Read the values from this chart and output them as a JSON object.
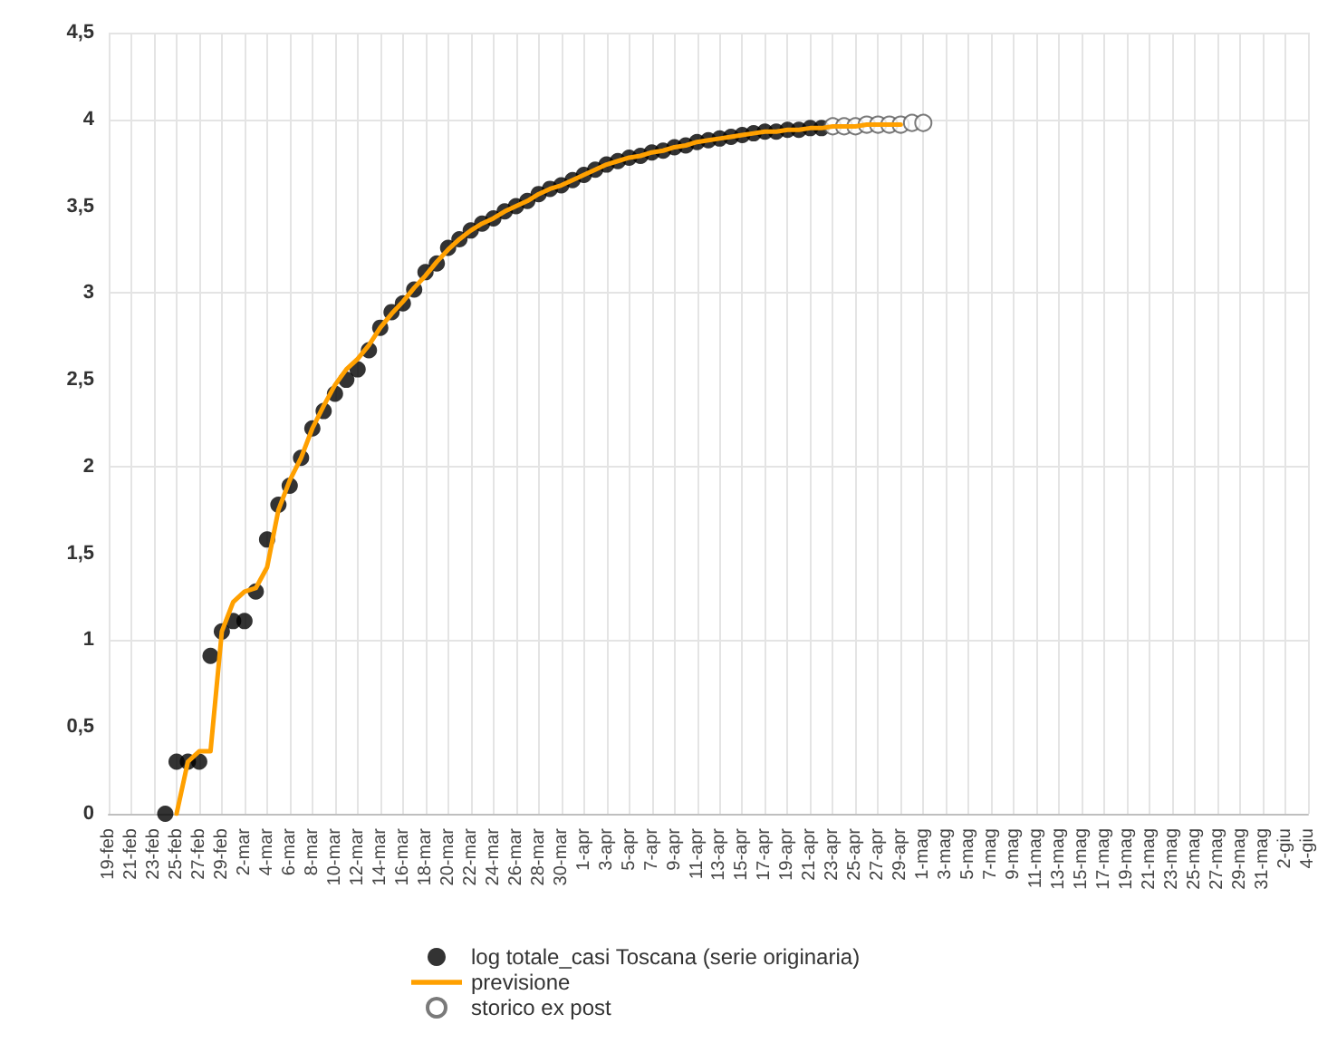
{
  "chart_data": {
    "type": "scatter",
    "categories": [
      "19-feb",
      null,
      "21-feb",
      null,
      "23-feb",
      null,
      "25-feb",
      null,
      "27-feb",
      null,
      "29-feb",
      null,
      "2-mar",
      null,
      "4-mar",
      null,
      "6-mar",
      null,
      "8-mar",
      null,
      "10-mar",
      null,
      "12-mar",
      null,
      "14-mar",
      null,
      "16-mar",
      null,
      "18-mar",
      null,
      "20-mar",
      null,
      "22-mar",
      null,
      "24-mar",
      null,
      "26-mar",
      null,
      "28-mar",
      null,
      "30-mar",
      null,
      "1-apr",
      null,
      "3-apr",
      null,
      "5-apr",
      null,
      "7-apr",
      null,
      "9-apr",
      null,
      "11-apr",
      null,
      "13-apr",
      null,
      "15-apr",
      null,
      "17-apr",
      null,
      "19-apr",
      null,
      "21-apr",
      null,
      "23-apr",
      null,
      "25-apr",
      null,
      "27-apr",
      null,
      "29-apr",
      null,
      "1-mag",
      null,
      "3-mag",
      null,
      "5-mag",
      null,
      "7-mag",
      null,
      "9-mag",
      null,
      "11-mag",
      null,
      "13-mag",
      null,
      "15-mag",
      null,
      "17-mag",
      null,
      "19-mag",
      null,
      "21-mag",
      null,
      "23-mag",
      null,
      "25-mag",
      null,
      "27-mag",
      null,
      "29-mag",
      null,
      "31-mag",
      null,
      "2-giu",
      null,
      "4-giu"
    ],
    "series": [
      {
        "name": "log totale_casi Toscana (serie originaria)",
        "marker": "circle",
        "color": "#000000",
        "values": [
          null,
          null,
          null,
          null,
          null,
          0,
          0.3,
          0.3,
          0.3,
          0.91,
          1.05,
          1.11,
          1.11,
          1.28,
          1.58,
          1.78,
          1.89,
          2.05,
          2.22,
          2.32,
          2.42,
          2.5,
          2.56,
          2.67,
          2.8,
          2.89,
          2.94,
          3.02,
          3.12,
          3.17,
          3.26,
          3.31,
          3.36,
          3.4,
          3.43,
          3.47,
          3.5,
          3.53,
          3.57,
          3.6,
          3.62,
          3.65,
          3.68,
          3.71,
          3.74,
          3.76,
          3.78,
          3.79,
          3.81,
          3.82,
          3.84,
          3.85,
          3.87,
          3.88,
          3.89,
          3.9,
          3.91,
          3.92,
          3.93,
          3.93,
          3.94,
          3.94,
          3.95,
          3.95,
          null,
          null,
          null,
          null,
          null,
          null,
          null,
          null,
          null,
          null,
          null,
          null,
          null,
          null,
          null,
          null,
          null,
          null,
          null,
          null,
          null,
          null,
          null,
          null,
          null,
          null,
          null,
          null,
          null,
          null,
          null,
          null,
          null,
          null,
          null,
          null,
          null,
          null,
          null,
          null,
          null,
          null,
          null
        ]
      },
      {
        "name": "previsione",
        "type": "line",
        "marker": "none",
        "line_style": "solid",
        "color": "#ffa000",
        "values": [
          null,
          null,
          null,
          null,
          null,
          null,
          0,
          0.3,
          0.36,
          0.36,
          1.05,
          1.22,
          1.28,
          1.3,
          1.42,
          1.75,
          1.92,
          2.05,
          2.22,
          2.35,
          2.47,
          2.56,
          2.62,
          2.7,
          2.8,
          2.88,
          2.95,
          3.03,
          3.1,
          3.18,
          3.25,
          3.31,
          3.36,
          3.4,
          3.43,
          3.47,
          3.5,
          3.53,
          3.57,
          3.6,
          3.62,
          3.65,
          3.68,
          3.71,
          3.74,
          3.76,
          3.78,
          3.79,
          3.81,
          3.82,
          3.84,
          3.85,
          3.87,
          3.88,
          3.89,
          3.9,
          3.91,
          3.92,
          3.93,
          3.93,
          3.94,
          3.94,
          3.95,
          3.95,
          3.96,
          3.96,
          3.96,
          3.97,
          3.97,
          3.97,
          3.97,
          null,
          null,
          null,
          null,
          null,
          null,
          null,
          null,
          null,
          null,
          null,
          null,
          null,
          null,
          null,
          null,
          null,
          null,
          null,
          null,
          null,
          null,
          null,
          null,
          null,
          null,
          null,
          null,
          null,
          null,
          null,
          null,
          null,
          null,
          null,
          null
        ]
      },
      {
        "name": "storico ex post",
        "marker": "circle",
        "color": "#595959",
        "values": [
          null,
          null,
          null,
          null,
          null,
          null,
          null,
          null,
          null,
          null,
          null,
          null,
          null,
          null,
          null,
          null,
          null,
          null,
          null,
          null,
          null,
          null,
          null,
          null,
          null,
          null,
          null,
          null,
          null,
          null,
          null,
          null,
          null,
          null,
          null,
          null,
          null,
          null,
          null,
          null,
          null,
          null,
          null,
          null,
          null,
          null,
          null,
          null,
          null,
          null,
          null,
          null,
          null,
          null,
          null,
          null,
          null,
          null,
          null,
          null,
          null,
          null,
          null,
          null,
          3.96,
          3.96,
          3.96,
          3.97,
          3.97,
          3.97,
          3.97,
          3.98,
          3.98,
          null,
          null,
          null,
          null,
          null,
          null,
          null,
          null,
          null,
          null,
          null,
          null,
          null,
          null,
          null,
          null,
          null,
          null,
          null,
          null,
          null,
          null,
          null,
          null,
          null,
          null,
          null,
          null,
          null,
          null,
          null,
          null,
          null,
          null
        ]
      }
    ],
    "ylim": [
      0,
      4.5
    ],
    "yticks": [
      {
        "value": 0,
        "label": "0"
      },
      {
        "value": 0.5,
        "label": "0,5"
      },
      {
        "value": 1,
        "label": "1"
      },
      {
        "value": 1.5,
        "label": "1,5"
      },
      {
        "value": 2,
        "label": "2"
      },
      {
        "value": 2.5,
        "label": "2,5"
      },
      {
        "value": 3,
        "label": "3"
      },
      {
        "value": 3.5,
        "label": "3,5"
      },
      {
        "value": 4,
        "label": "4"
      },
      {
        "value": 4.5,
        "label": "4,5"
      }
    ],
    "grid": true,
    "legend": "bottom"
  }
}
